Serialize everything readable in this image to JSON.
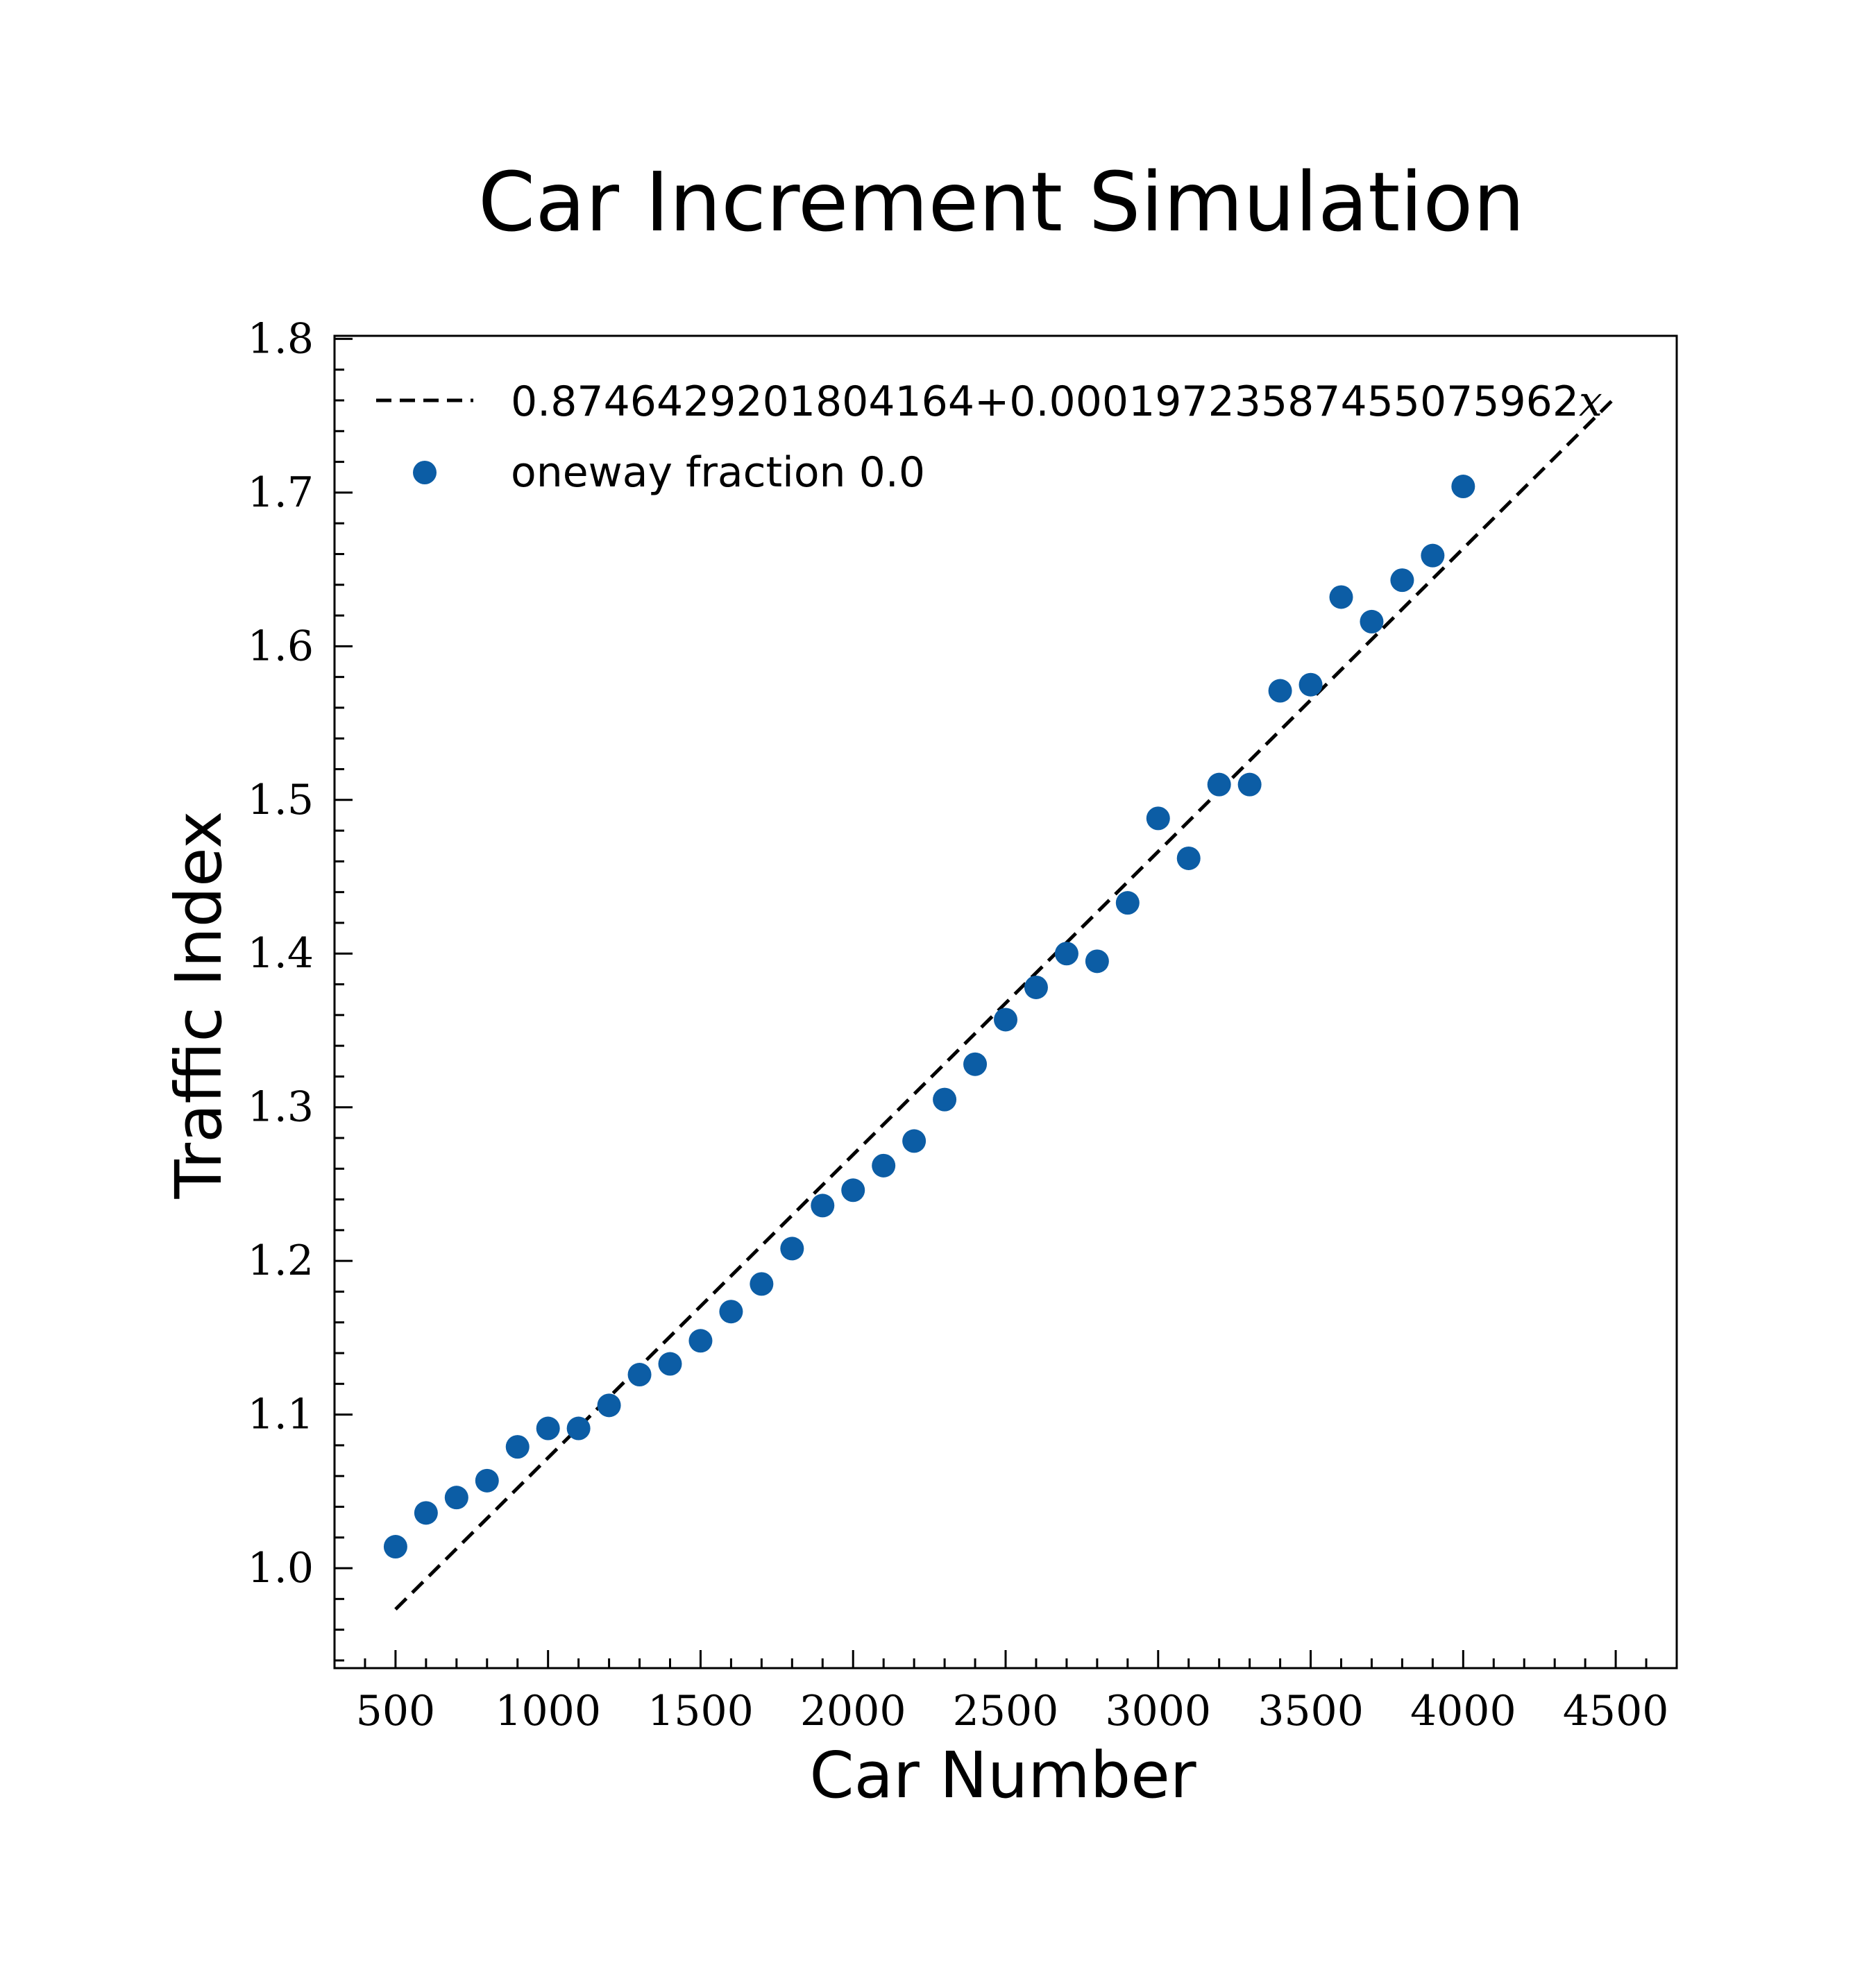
{
  "chart_data": {
    "type": "scatter",
    "title": "Car Increment Simulation",
    "xlabel": "Car Number",
    "ylabel": "Traffic Index",
    "xlim": [
      300,
      4700
    ],
    "ylim": [
      0.935,
      1.802
    ],
    "x_ticks": [
      500,
      1000,
      1500,
      2000,
      2500,
      3000,
      3500,
      4000,
      4500
    ],
    "x_tick_labels": [
      "500",
      "1000",
      "1500",
      "2000",
      "2500",
      "3000",
      "3500",
      "4000",
      "4500"
    ],
    "y_ticks": [
      1.0,
      1.1,
      1.2,
      1.3,
      1.4,
      1.5,
      1.6,
      1.7,
      1.8
    ],
    "y_tick_labels": [
      "1.0",
      "1.1",
      "1.2",
      "1.3",
      "1.4",
      "1.5",
      "1.6",
      "1.7",
      "1.8"
    ],
    "grid": false,
    "legend_position": "top-left",
    "series": [
      {
        "name": "oneway fraction 0.0",
        "kind": "scatter",
        "color": "#0c5da5",
        "x": [
          500,
          600,
          700,
          800,
          900,
          1000,
          1100,
          1200,
          1300,
          1400,
          1500,
          1600,
          1700,
          1800,
          1900,
          2000,
          2100,
          2200,
          2300,
          2400,
          2500,
          2600,
          2700,
          2800,
          2900,
          3000,
          3100,
          3200,
          3300,
          3400,
          3500,
          3600,
          3700,
          3800,
          3900,
          4000
        ],
        "y": [
          1.014,
          1.036,
          1.046,
          1.057,
          1.079,
          1.091,
          1.091,
          1.106,
          1.126,
          1.133,
          1.148,
          1.167,
          1.185,
          1.208,
          1.236,
          1.246,
          1.262,
          1.278,
          1.305,
          1.328,
          1.357,
          1.378,
          1.4,
          1.395,
          1.433,
          1.488,
          1.462,
          1.51,
          1.51,
          1.571,
          1.575,
          1.632,
          1.616,
          1.643,
          1.659,
          1.704
        ]
      }
    ],
    "fit_line": {
      "name": "0.8746429201804164+0.00019723587455075962",
      "name_variable": "x",
      "kind": "line",
      "style": "dashed",
      "color": "#000000",
      "intercept": 0.8746429201804164,
      "slope": 0.00019723587455075962,
      "x_range": [
        500,
        4500
      ]
    }
  }
}
